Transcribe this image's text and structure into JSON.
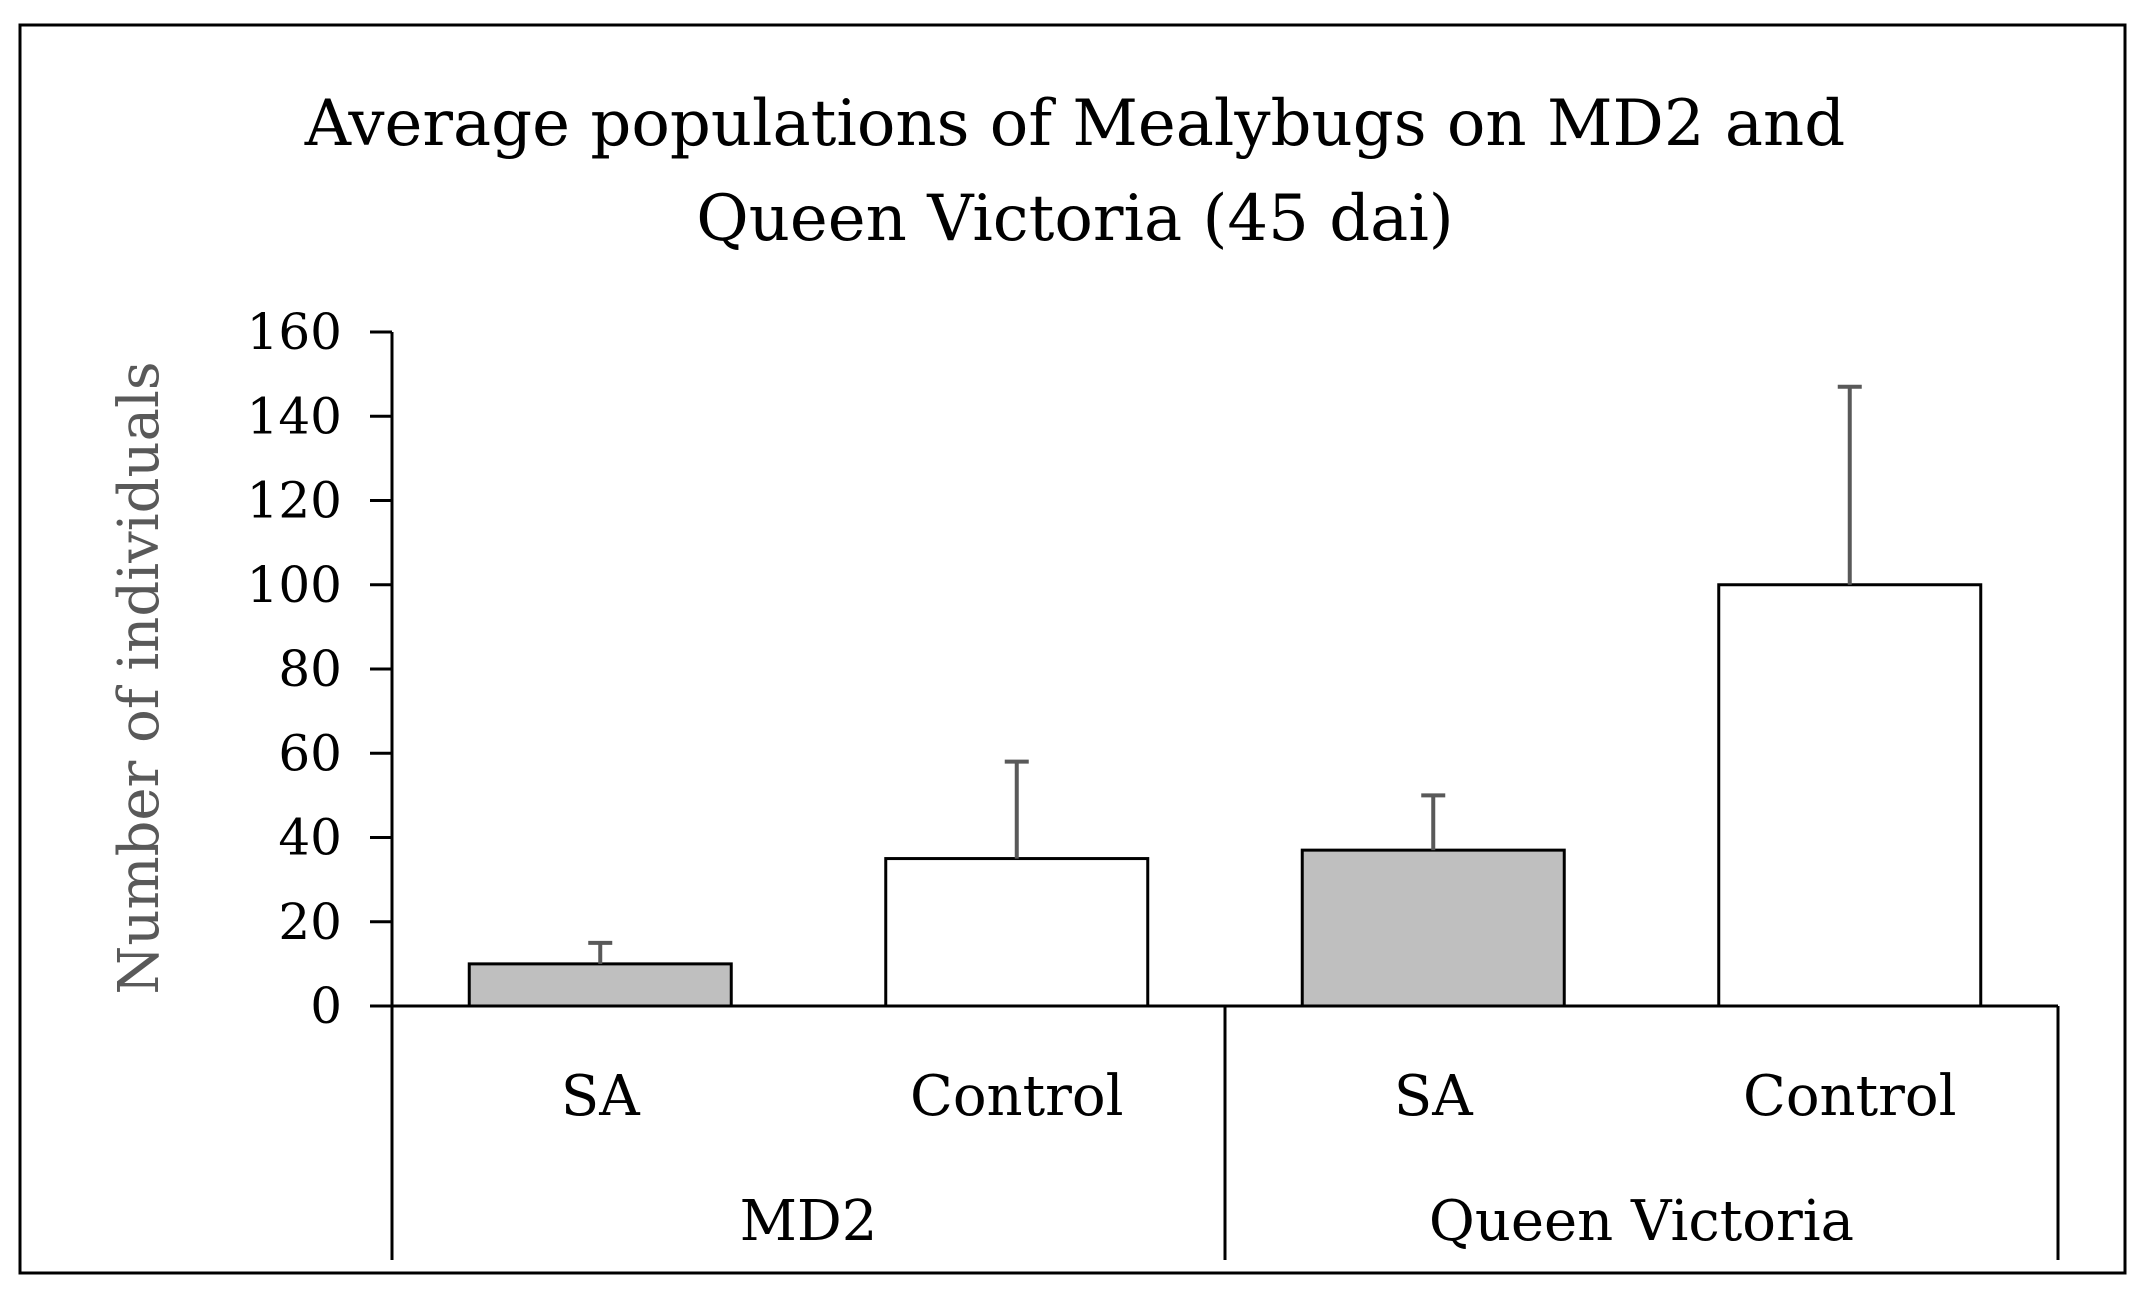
{
  "chart_data": {
    "type": "bar",
    "title": [
      "Average populations of Mealybugs on MD2 and",
      "Queen Victoria (45 dai)"
    ],
    "ylabel": "Number of individuals",
    "xlabel": "",
    "ylim": [
      0,
      160
    ],
    "yticks": [
      0,
      20,
      40,
      60,
      80,
      100,
      120,
      140,
      160
    ],
    "grid": false,
    "legend": "none",
    "groups": [
      {
        "name": "MD2",
        "bars": [
          {
            "category": "SA",
            "value": 10,
            "error": 5,
            "color": "#bfbfbf"
          },
          {
            "category": "Control",
            "value": 35,
            "error": 23,
            "color": "#ffffff"
          }
        ]
      },
      {
        "name": "Queen Victoria",
        "bars": [
          {
            "category": "SA",
            "value": 37,
            "error": 13,
            "color": "#bfbfbf"
          },
          {
            "category": "Control",
            "value": 100,
            "error": 47,
            "color": "#ffffff"
          }
        ]
      }
    ]
  },
  "colors": {
    "frame": "#000000",
    "axis": "#000000",
    "bar_edge": "#000000",
    "error_bar": "#595959",
    "ylabel_text": "#595959"
  }
}
